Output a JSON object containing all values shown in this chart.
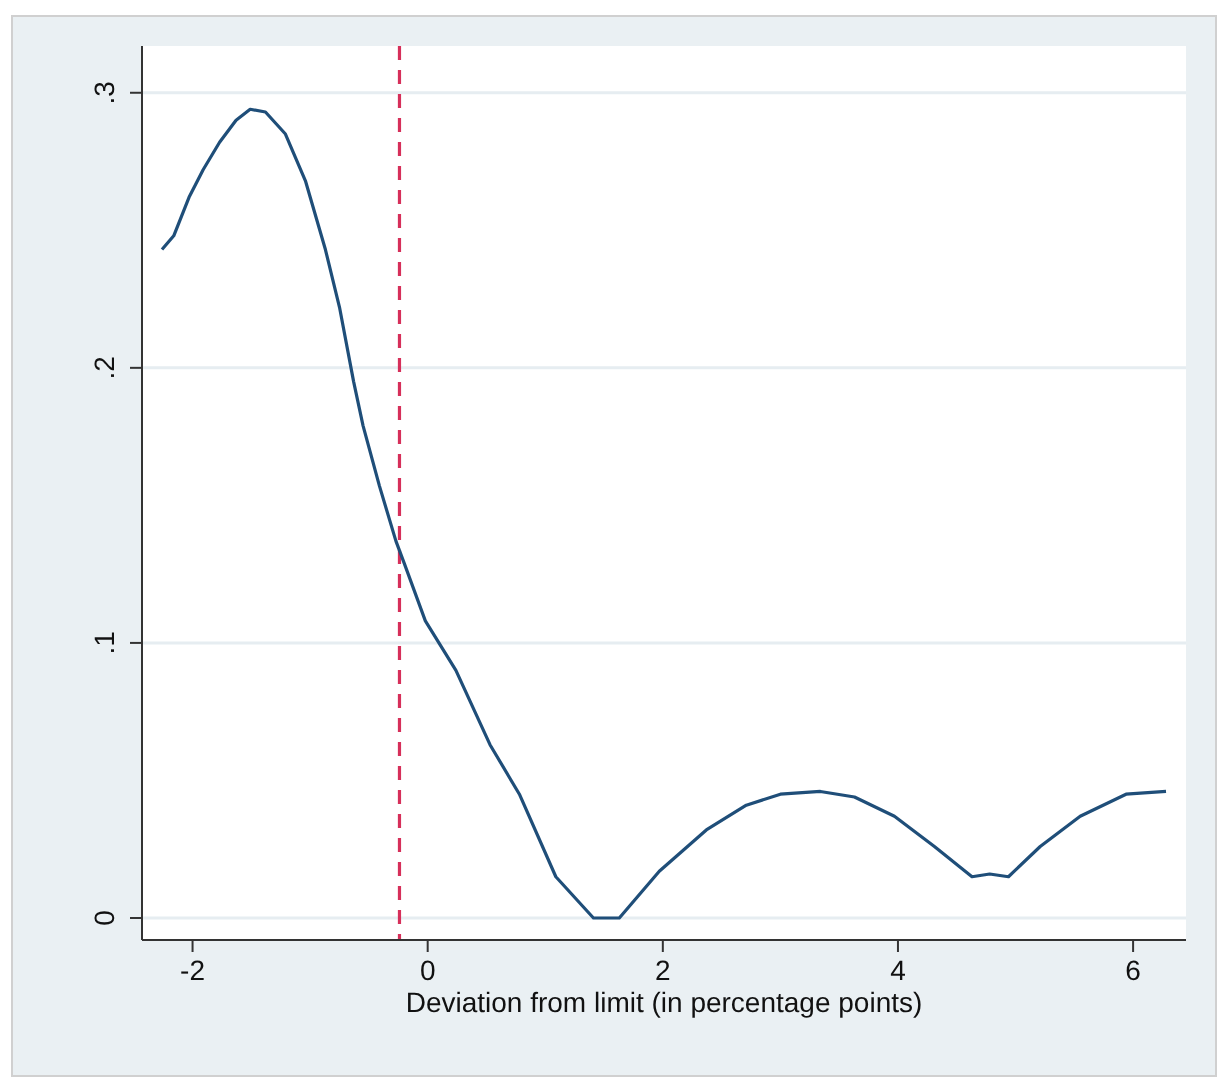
{
  "chart_data": {
    "type": "line",
    "xlabel": "Deviation from limit (in percentage points)",
    "xlim": [
      -2.43,
      6.45
    ],
    "xticks": [
      -2,
      0,
      2,
      4,
      6
    ],
    "ylim": [
      -0.008,
      0.317
    ],
    "yticks": [
      {
        "value": 0,
        "label": "0"
      },
      {
        "value": 0.1,
        "label": ".1"
      },
      {
        "value": 0.2,
        "label": ".2"
      },
      {
        "value": 0.3,
        "label": ".3"
      }
    ],
    "grid": "y",
    "marker": "none",
    "line_style": "solid",
    "ref_lines": [
      {
        "axis": "x",
        "value": -0.24,
        "label": null,
        "color": "#d62f5a",
        "line_style": "dashed"
      }
    ],
    "series": [
      {
        "color": "#1f4e79",
        "x": [
          -2.26,
          -2.16,
          -2.03,
          -1.91,
          -1.77,
          -1.63,
          -1.51,
          -1.38,
          -1.21,
          -1.04,
          -0.87,
          -0.75,
          -0.63,
          -0.55,
          -0.41,
          -0.27,
          -0.2,
          -0.02,
          0.24,
          0.53,
          0.78,
          1.09,
          1.41,
          1.63,
          1.97,
          2.37,
          2.71,
          3.0,
          3.34,
          3.63,
          3.97,
          4.31,
          4.63,
          4.78,
          4.94,
          5.21,
          5.55,
          5.94,
          6.28
        ],
        "values": [
          0.243,
          0.248,
          0.262,
          0.272,
          0.282,
          0.29,
          0.294,
          0.293,
          0.285,
          0.268,
          0.243,
          0.222,
          0.195,
          0.179,
          0.157,
          0.137,
          0.129,
          0.108,
          0.09,
          0.063,
          0.045,
          0.015,
          0.0,
          0.0,
          0.017,
          0.032,
          0.041,
          0.045,
          0.046,
          0.044,
          0.037,
          0.026,
          0.015,
          0.016,
          0.015,
          0.026,
          0.037,
          0.045,
          0.046
        ]
      }
    ]
  }
}
